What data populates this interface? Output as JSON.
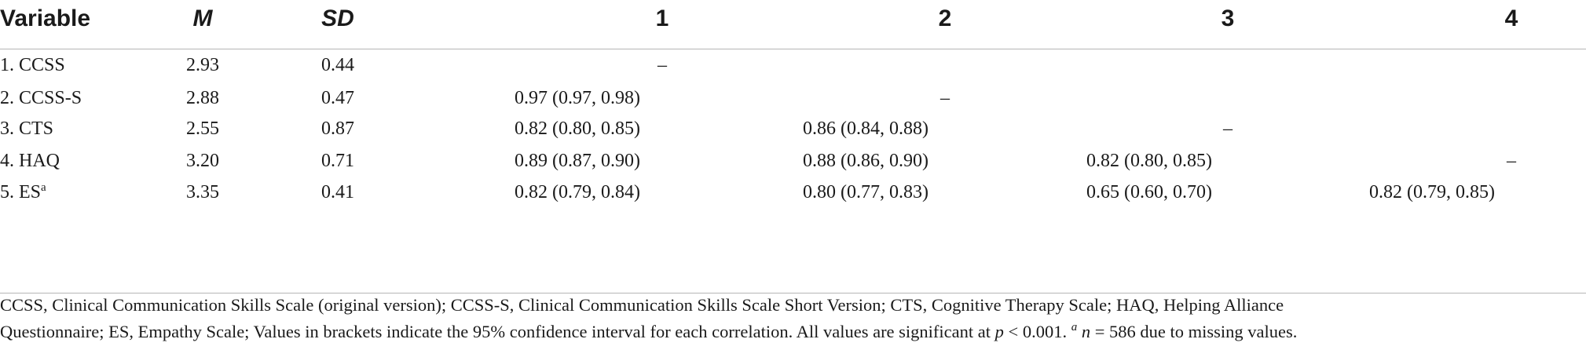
{
  "table": {
    "headers": {
      "variable": "Variable",
      "mean": "M",
      "sd": "SD",
      "c1": "1",
      "c2": "2",
      "c3": "3",
      "c4": "4"
    },
    "rows": [
      {
        "variable": "1. CCSS",
        "sup": "",
        "mean": "2.93",
        "sd": "0.44",
        "c1": "–",
        "c2": "",
        "c3": "",
        "c4": ""
      },
      {
        "variable": "2. CCSS-S",
        "sup": "",
        "mean": "2.88",
        "sd": "0.47",
        "c1": "0.97 (0.97, 0.98)",
        "c2": "–",
        "c3": "",
        "c4": ""
      },
      {
        "variable": "3. CTS",
        "sup": "",
        "mean": "2.55",
        "sd": "0.87",
        "c1": "0.82 (0.80, 0.85)",
        "c2": "0.86 (0.84, 0.88)",
        "c3": "–",
        "c4": ""
      },
      {
        "variable": "4. HAQ",
        "sup": "",
        "mean": "3.20",
        "sd": "0.71",
        "c1": "0.89 (0.87, 0.90)",
        "c2": "0.88 (0.86, 0.90)",
        "c3": "0.82 (0.80, 0.85)",
        "c4": "–"
      },
      {
        "variable": "5. ES",
        "sup": "a",
        "mean": "3.35",
        "sd": "0.41",
        "c1": "0.82 (0.79, 0.84)",
        "c2": "0.80 (0.77, 0.83)",
        "c3": "0.65 (0.60, 0.70)",
        "c4": "0.82 (0.79, 0.85)"
      }
    ]
  },
  "footnote": {
    "line1": "CCSS, Clinical Communication Skills Scale (original version); CCSS-S, Clinical Communication Skills Scale Short Version; CTS, Cognitive Therapy Scale; HAQ, Helping Alliance",
    "line2_a": "Questionnaire; ES, Empathy Scale; Values in brackets indicate the 95% confidence interval for each correlation. All values are significant at ",
    "p_symbol": "p",
    "line2_b": " < 0.001. ",
    "sup": "a",
    "n_symbol": "n",
    "line2_c": " = 586 due to missing values."
  }
}
